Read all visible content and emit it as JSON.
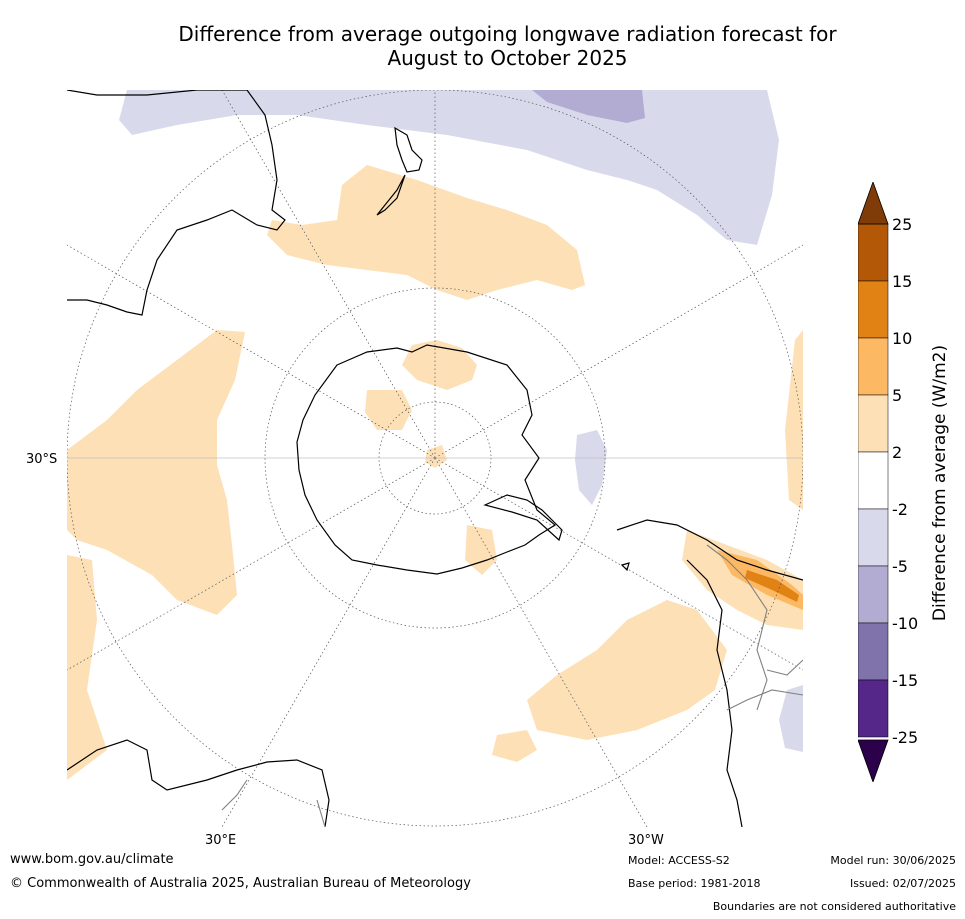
{
  "title": {
    "line1": "Difference from average outgoing longwave radiation forecast for",
    "line2": "August to October 2025"
  },
  "map": {
    "projection": "south polar stereographic",
    "latitude_labels": [
      "30°S"
    ],
    "longitude_labels": [
      "30°E",
      "30°W"
    ],
    "colors": {
      "ocean": "#ffffff",
      "coast": "#000000",
      "boundary": "#808080",
      "graticule": "#555555",
      "anomaly_2_5": "#fde0b6",
      "anomaly_5_10": "#fdb863",
      "anomaly_10_15": "#e08214",
      "anomaly_neg2_neg5": "#d8daeb",
      "anomaly_neg5_neg10": "#b2abd2"
    }
  },
  "colorbar": {
    "title": "Difference from average (W/m2)",
    "ticks": [
      "25",
      "15",
      "10",
      "5",
      "2",
      "-2",
      "-5",
      "-10",
      "-15",
      "-25"
    ],
    "bins": [
      {
        "from": 15,
        "to": 25,
        "color": "#b35806"
      },
      {
        "from": 10,
        "to": 15,
        "color": "#e08214"
      },
      {
        "from": 5,
        "to": 10,
        "color": "#fdb863"
      },
      {
        "from": 2,
        "to": 5,
        "color": "#fee0b6"
      },
      {
        "from": -2,
        "to": 2,
        "color": "#ffffff"
      },
      {
        "from": -5,
        "to": -2,
        "color": "#d8daeb"
      },
      {
        "from": -10,
        "to": -5,
        "color": "#b2abd2"
      },
      {
        "from": -15,
        "to": -10,
        "color": "#8073ac"
      },
      {
        "from": -25,
        "to": -15,
        "color": "#542788"
      }
    ],
    "over_color": "#7f3b08",
    "under_color": "#2d004b"
  },
  "footer": {
    "url": "www.bom.gov.au/climate",
    "copyright": "© Commonwealth of Australia 2025, Australian Bureau of Meteorology",
    "model": "Model: ACCESS-S2",
    "base_period": "Base period: 1981-2018",
    "model_run": "Model run: 30/06/2025",
    "issued": "Issued: 02/07/2025",
    "disclaimer": "Boundaries are not considered authoritative"
  }
}
